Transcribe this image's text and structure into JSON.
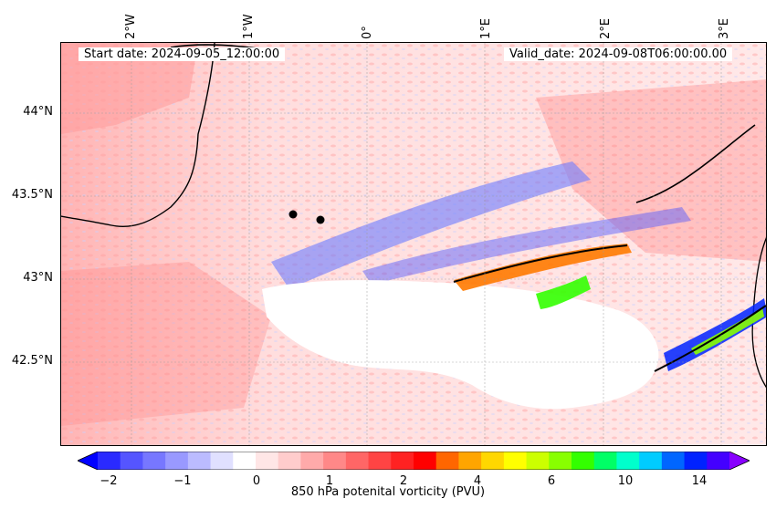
{
  "header": {
    "start_date": "Start date: 2024-09-05_12:00:00",
    "valid_date": "Valid_date: 2024-09-08T06:00:00.00"
  },
  "axes": {
    "lat_labels": [
      "44°N",
      "43.5°N",
      "43°N",
      "42.5°N"
    ],
    "lon_labels": [
      "2°W",
      "1°W",
      "0°",
      "1°E",
      "2°E",
      "3°E"
    ]
  },
  "colorbar": {
    "label": "850 hPa potenital vorticity (PVU)",
    "ticks": [
      "−2",
      "−1",
      "0",
      "1",
      "2",
      "4",
      "6",
      "10",
      "14"
    ],
    "colors": [
      "#0000ff",
      "#2a2aff",
      "#5555ff",
      "#7777ff",
      "#9999ff",
      "#bbbbff",
      "#e0e0ff",
      "#ffffff",
      "#ffe6e6",
      "#ffcccc",
      "#ffaaaa",
      "#ff8888",
      "#ff6666",
      "#ff4444",
      "#ff2222",
      "#ff0000",
      "#ff6600",
      "#ffa500",
      "#ffd700",
      "#ffff00",
      "#ccff00",
      "#88ff00",
      "#33ff00",
      "#00ff66",
      "#00ffcc",
      "#00ccff",
      "#0066ff",
      "#0022ff",
      "#4400ff",
      "#8800ff"
    ]
  },
  "markers": [
    "city-dot",
    "city-dot"
  ]
}
